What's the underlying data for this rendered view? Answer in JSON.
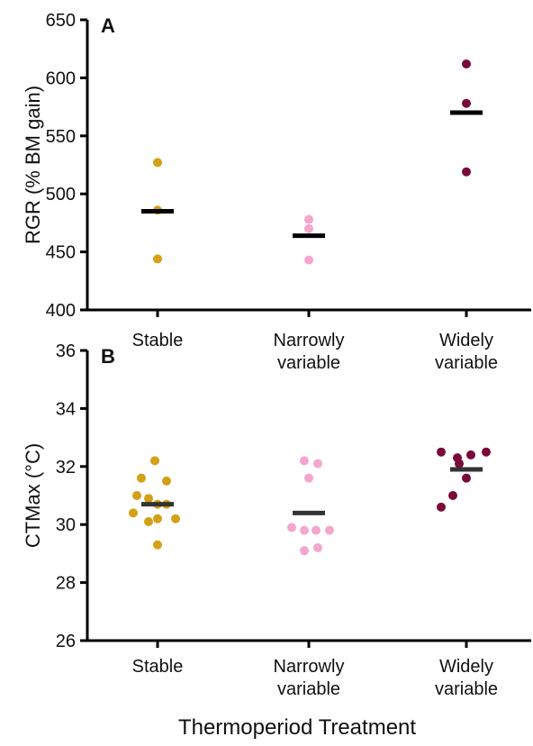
{
  "figure": {
    "xlabel": "Thermoperiod Treatment"
  },
  "colors": {
    "Stable": "#d4a017",
    "Narrowly variable": "#f4a6cf",
    "Widely variable": "#7a0a3a",
    "mean_bar": "#000000"
  },
  "chart_data": [
    {
      "type": "scatter",
      "panel_label": "A",
      "ylabel": "RGR (% BM gain)",
      "ylim": [
        400,
        650
      ],
      "yticks": [
        400,
        450,
        500,
        550,
        600,
        650
      ],
      "categories": [
        "Stable",
        "Narrowly\nvariable",
        "Widely\nvariable"
      ],
      "series": [
        {
          "category": "Stable",
          "mean": 485,
          "values": [
            527,
            486,
            444
          ]
        },
        {
          "category": "Narrowly variable",
          "mean": 464,
          "values": [
            478,
            470,
            443
          ]
        },
        {
          "category": "Widely variable",
          "mean": 570,
          "values": [
            612,
            578,
            519
          ]
        }
      ]
    },
    {
      "type": "scatter",
      "panel_label": "B",
      "ylabel": "CTMax (°C)",
      "ylim": [
        26,
        36
      ],
      "yticks": [
        26,
        28,
        30,
        32,
        34,
        36
      ],
      "categories": [
        "Stable",
        "Narrowly\nvariable",
        "Widely\nvariable"
      ],
      "series": [
        {
          "category": "Stable",
          "mean": 30.7,
          "values": [
            32.2,
            31.6,
            31.5,
            31.0,
            30.9,
            30.7,
            30.7,
            30.4,
            30.2,
            30.1,
            30.2,
            29.3
          ]
        },
        {
          "category": "Narrowly variable",
          "mean": 30.4,
          "values": [
            32.2,
            32.1,
            31.6,
            29.9,
            29.8,
            29.8,
            29.8,
            29.2,
            29.1
          ]
        },
        {
          "category": "Widely variable",
          "mean": 31.9,
          "values": [
            32.5,
            32.5,
            32.3,
            32.4,
            32.1,
            31.6,
            31.0,
            30.6
          ]
        }
      ]
    }
  ]
}
